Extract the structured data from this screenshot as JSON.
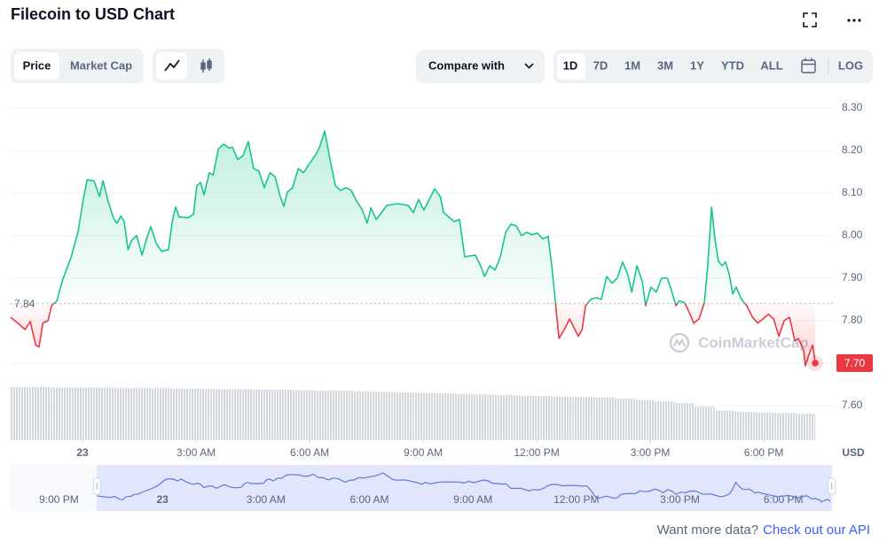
{
  "header": {
    "title": "Filecoin to USD Chart"
  },
  "controls": {
    "tabs": [
      "Price",
      "Market Cap"
    ],
    "compare": "Compare with",
    "ranges": [
      "1D",
      "7D",
      "1M",
      "3M",
      "1Y",
      "YTD",
      "ALL"
    ],
    "log": "LOG"
  },
  "chart_data": {
    "type": "line",
    "x": [
      -1.9,
      -1.71,
      -1.52,
      -1.38,
      -1.24,
      -1.15,
      -1.05,
      -0.91,
      -0.82,
      -0.68,
      -0.54,
      -0.3,
      -0.12,
      0.02,
      0.12,
      0.3,
      0.45,
      0.54,
      0.68,
      0.82,
      0.91,
      1.01,
      1.1,
      1.2,
      1.29,
      1.43,
      1.57,
      1.66,
      1.8,
      1.95,
      2.09,
      2.27,
      2.37,
      2.46,
      2.55,
      2.79,
      2.93,
      3.02,
      3.12,
      3.21,
      3.35,
      3.45,
      3.59,
      3.73,
      3.87,
      3.96,
      4.1,
      4.24,
      4.38,
      4.52,
      4.66,
      4.8,
      4.95,
      5.09,
      5.23,
      5.32,
      5.41,
      5.55,
      5.7,
      5.84,
      5.98,
      6.16,
      6.26,
      6.4,
      6.54,
      6.68,
      6.82,
      6.96,
      7.1,
      7.24,
      7.38,
      7.52,
      7.62,
      7.76,
      7.9,
      8.04,
      8.32,
      8.6,
      8.74,
      8.88,
      9.02,
      9.16,
      9.3,
      9.45,
      9.54,
      9.82,
      9.96,
      10.1,
      10.38,
      10.52,
      10.62,
      10.76,
      10.9,
      11.04,
      11.18,
      11.32,
      11.46,
      11.6,
      11.74,
      11.88,
      12.02,
      12.16,
      12.3,
      12.4,
      12.49,
      12.59,
      12.73,
      12.87,
      13.01,
      13.1,
      13.2,
      13.29,
      13.43,
      13.57,
      13.71,
      13.85,
      13.99,
      14.13,
      14.27,
      14.41,
      14.51,
      14.65,
      14.79,
      14.88,
      15.02,
      15.16,
      15.3,
      15.45,
      15.54,
      15.68,
      15.77,
      15.91,
      16.05,
      16.15,
      16.29,
      16.43,
      16.52,
      16.62,
      16.71,
      16.8,
      16.9,
      16.99,
      17.09,
      17.18,
      17.27,
      17.41,
      17.55,
      17.7,
      17.84,
      17.98,
      18.12,
      18.26,
      18.4,
      18.54,
      18.68,
      18.82,
      18.91,
      19.05,
      19.1,
      19.2,
      19.29,
      19.36
    ],
    "values": [
      7.808,
      7.794,
      7.779,
      7.798,
      7.742,
      7.738,
      7.794,
      7.8,
      7.835,
      7.846,
      7.892,
      7.95,
      8.008,
      8.085,
      8.131,
      8.129,
      8.092,
      8.129,
      8.079,
      8.04,
      8.029,
      8.046,
      8.033,
      7.967,
      7.988,
      8.0,
      7.954,
      7.983,
      8.021,
      7.981,
      7.963,
      7.967,
      8.033,
      8.067,
      8.044,
      8.042,
      8.05,
      8.117,
      8.125,
      8.096,
      8.148,
      8.142,
      8.204,
      8.215,
      8.206,
      8.208,
      8.179,
      8.188,
      8.221,
      8.158,
      8.152,
      8.113,
      8.148,
      8.138,
      8.09,
      8.069,
      8.102,
      8.113,
      8.158,
      8.148,
      8.167,
      8.19,
      8.208,
      8.246,
      8.179,
      8.117,
      8.106,
      8.113,
      8.106,
      8.081,
      8.063,
      8.029,
      8.065,
      8.038,
      8.054,
      8.071,
      8.075,
      8.071,
      8.054,
      8.085,
      8.06,
      8.085,
      8.11,
      8.092,
      8.054,
      8.033,
      8.038,
      7.95,
      7.954,
      7.929,
      7.904,
      7.929,
      7.919,
      7.95,
      8.008,
      8.027,
      8.023,
      8.0,
      8.008,
      8.002,
      8.006,
      7.992,
      7.998,
      7.929,
      7.846,
      7.758,
      7.779,
      7.804,
      7.779,
      7.763,
      7.779,
      7.835,
      7.85,
      7.854,
      7.85,
      7.904,
      7.888,
      7.9,
      7.938,
      7.908,
      7.867,
      7.929,
      7.892,
      7.835,
      7.879,
      7.867,
      7.9,
      7.9,
      7.877,
      7.835,
      7.846,
      7.842,
      7.815,
      7.794,
      7.804,
      7.842,
      7.929,
      8.067,
      7.992,
      7.94,
      7.929,
      7.938,
      7.908,
      7.863,
      7.879,
      7.85,
      7.835,
      7.808,
      7.794,
      7.804,
      7.815,
      7.804,
      7.763,
      7.8,
      7.808,
      7.752,
      7.758,
      7.731,
      7.694,
      7.721,
      7.742,
      7.7
    ],
    "colors": {
      "up": "#16c784",
      "down": "#ea3943",
      "navigator": "#6178d6"
    },
    "baseline": {
      "value": 7.84,
      "label": "7.84"
    },
    "current_price": {
      "value": 7.7,
      "label": "7.70"
    },
    "xlim": [
      -1.9,
      19.85
    ],
    "ylim": [
      7.52,
      8.33
    ],
    "xticks": [
      {
        "value": 0,
        "label": "23"
      },
      {
        "value": 3,
        "label": "3:00 AM"
      },
      {
        "value": 6,
        "label": "6:00 AM"
      },
      {
        "value": 9,
        "label": "9:00 AM"
      },
      {
        "value": 12,
        "label": "12:00 PM"
      },
      {
        "value": 15,
        "label": "3:00 PM"
      },
      {
        "value": 18,
        "label": "6:00 PM"
      }
    ],
    "yticks": [
      {
        "value": 7.6,
        "label": "7.60"
      },
      {
        "value": 7.7,
        "label": "7.70"
      },
      {
        "value": 7.8,
        "label": "7.80"
      },
      {
        "value": 7.9,
        "label": "7.90"
      },
      {
        "value": 8.0,
        "label": "8.00"
      },
      {
        "value": 8.1,
        "label": "8.10"
      },
      {
        "value": 8.2,
        "label": "8.20"
      },
      {
        "value": 8.3,
        "label": "8.30"
      }
    ],
    "grid": true,
    "unit": "USD",
    "watermark": "CoinMarketCap",
    "volume": {
      "ylim": [
        0,
        100
      ],
      "values": [
        100,
        100,
        99,
        99,
        99,
        98,
        98,
        98,
        97,
        97,
        96,
        96,
        95,
        95,
        94,
        93,
        93,
        92,
        91,
        90,
        89,
        88,
        87,
        86,
        85,
        84,
        83,
        82,
        81,
        80,
        78,
        76,
        73,
        70,
        63,
        56,
        53,
        52,
        51,
        50
      ]
    },
    "navigator": {
      "xlim": [
        -4.4,
        19.46
      ],
      "range": [
        -1.9,
        19.4
      ],
      "xticks": [
        {
          "value": -3,
          "label": "9:00 PM"
        },
        {
          "value": 0,
          "label": "23"
        },
        {
          "value": 3,
          "label": "3:00 AM"
        },
        {
          "value": 6,
          "label": "6:00 AM"
        },
        {
          "value": 9,
          "label": "9:00 AM"
        },
        {
          "value": 12,
          "label": "12:00 PM"
        },
        {
          "value": 15,
          "label": "3:00 PM"
        },
        {
          "value": 18,
          "label": "6:00 PM"
        }
      ]
    }
  },
  "footer": {
    "prompt": "Want more data?",
    "link": "Check out our API"
  }
}
